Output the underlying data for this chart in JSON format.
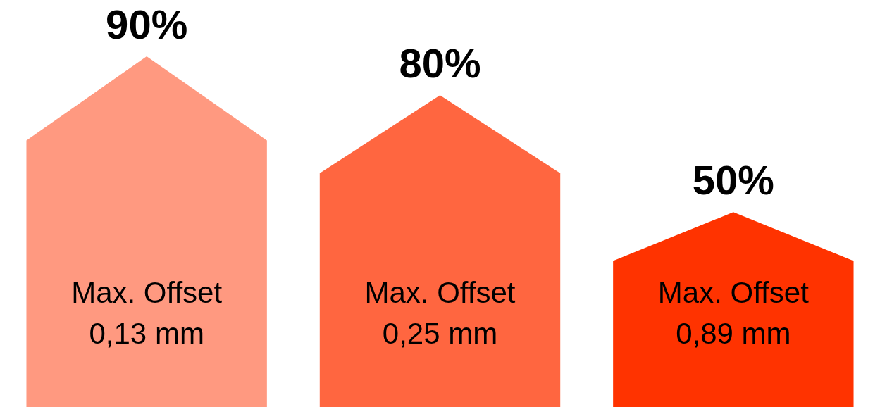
{
  "chart_data": {
    "type": "bar",
    "categories": [
      "Max. Offset 0,13 mm",
      "Max. Offset 0,25 mm",
      "Max. Offset 0,89 mm"
    ],
    "values": [
      90,
      80,
      50
    ],
    "colors": [
      "#ff9980",
      "#ff6640",
      "#ff3300"
    ],
    "value_labels": [
      "90%",
      "80%",
      "50%"
    ],
    "tick_labels": "x"
  }
}
